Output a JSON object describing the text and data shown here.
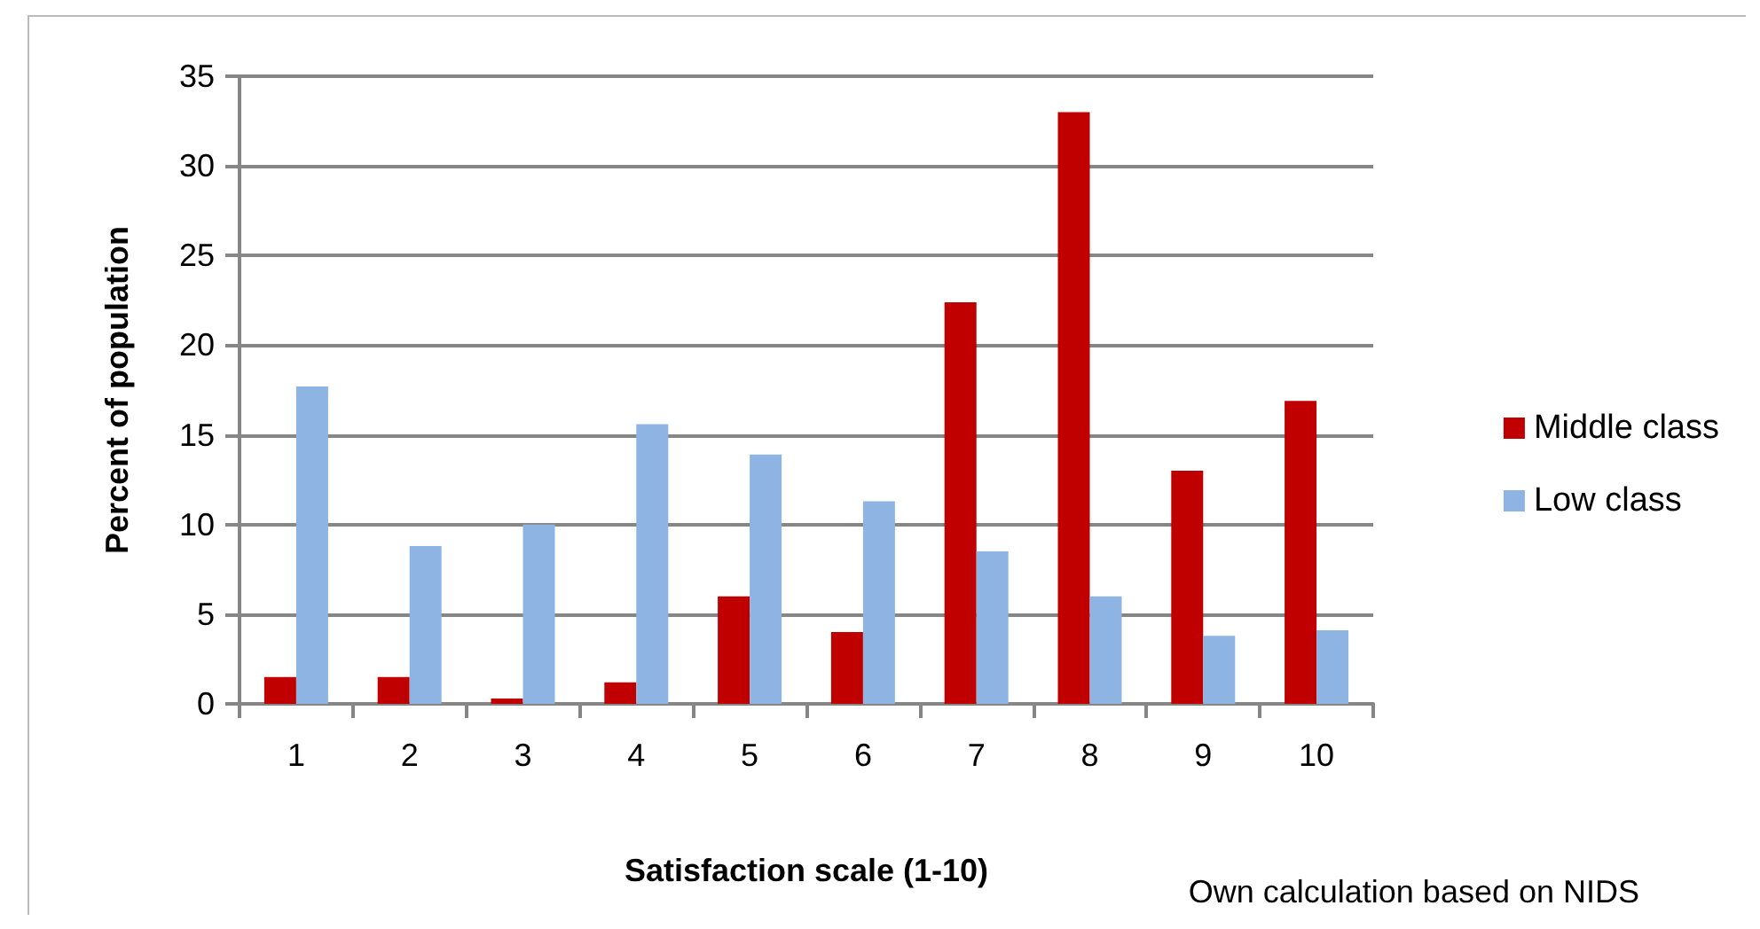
{
  "chart_data": {
    "type": "bar",
    "xlabel": "Satisfaction scale (1-10)",
    "ylabel": "Percent of population",
    "categories": [
      "1",
      "2",
      "3",
      "4",
      "5",
      "6",
      "7",
      "8",
      "9",
      "10"
    ],
    "series": [
      {
        "name": "Middle class",
        "color": "#c00000",
        "values": [
          1.5,
          1.5,
          0.3,
          1.2,
          6.0,
          4.0,
          22.4,
          33.0,
          13.0,
          16.9
        ]
      },
      {
        "name": "Low class",
        "color": "#8eb4e3",
        "values": [
          17.7,
          8.8,
          10.0,
          15.6,
          13.9,
          11.3,
          8.5,
          6.0,
          3.8,
          4.1
        ]
      }
    ],
    "ylim": [
      0,
      35
    ],
    "yticks": [
      0,
      5,
      10,
      15,
      20,
      25,
      30,
      35
    ],
    "grid": "y",
    "legend": "right",
    "annotations": [
      "Own calculation based on NIDS"
    ]
  }
}
